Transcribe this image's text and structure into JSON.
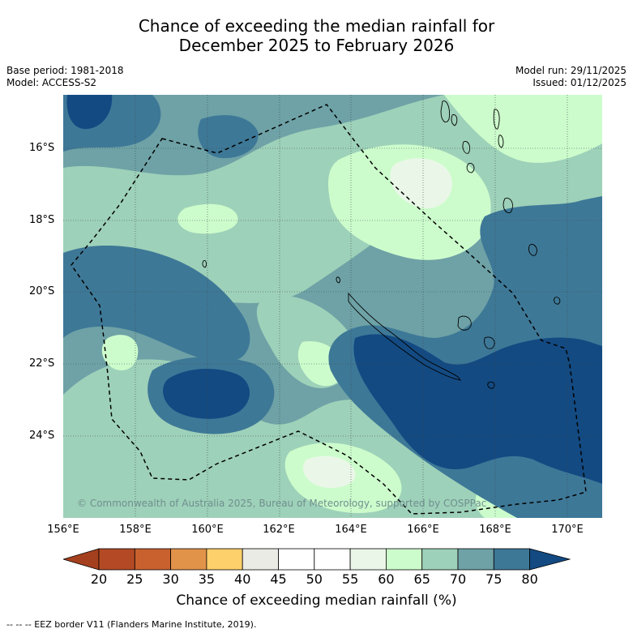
{
  "title": {
    "line1": "Chance of exceeding the median rainfall for",
    "line2": "December 2025 to February 2026"
  },
  "meta_left": {
    "base_period": "Base period: 1981-2018",
    "model": "Model: ACCESS-S2"
  },
  "meta_right": {
    "model_run": "Model run: 29/11/2025",
    "issued": "Issued: 01/12/2025"
  },
  "map": {
    "lat_labels": [
      "16°S",
      "18°S",
      "20°S",
      "22°S",
      "24°S"
    ],
    "lon_labels": [
      "156°E",
      "158°E",
      "160°E",
      "162°E",
      "164°E",
      "166°E",
      "168°E",
      "170°E"
    ],
    "copyright": "© Commonwealth of Australia 2025, Bureau of Meteorology, supported by COSPPac"
  },
  "colorbar": {
    "ticks": [
      "20",
      "25",
      "30",
      "35",
      "40",
      "45",
      "50",
      "55",
      "60",
      "65",
      "70",
      "75",
      "80"
    ],
    "colors": [
      "#a5401e",
      "#b44a25",
      "#c9612e",
      "#e2934a",
      "#fdd06b",
      "#ebebe6",
      "#ffffff",
      "#ffffff",
      "#eaf7e8",
      "#cdfccc",
      "#9ed1b9",
      "#6ea2a6",
      "#3e7897",
      "#134a82"
    ],
    "title": "Chance of exceeding median rainfall (%)"
  },
  "footnote": "--  --  -- EEZ border V11 (Flanders Marine Institute, 2019)."
}
